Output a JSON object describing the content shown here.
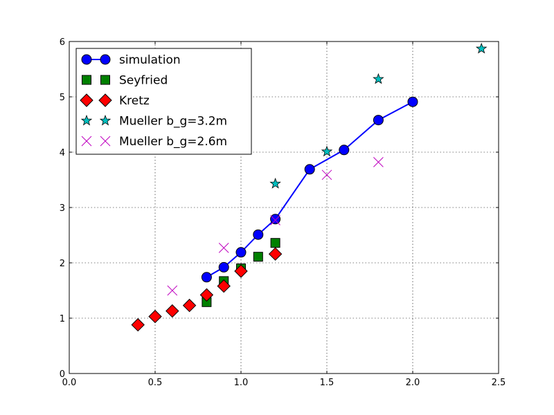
{
  "chart_data": {
    "type": "scatter",
    "title": "",
    "xlabel": "",
    "ylabel": "",
    "xlim": [
      0.0,
      2.5
    ],
    "ylim": [
      0,
      6
    ],
    "x_ticks": [
      "0.0",
      "0.5",
      "1.0",
      "1.5",
      "2.0",
      "2.5"
    ],
    "y_ticks": [
      "0",
      "1",
      "2",
      "3",
      "4",
      "5",
      "6"
    ],
    "grid": true,
    "legend_position": "top-left",
    "series": [
      {
        "name": "simulation",
        "marker": "circle",
        "line": true,
        "color": "#0000ff",
        "x": [
          0.8,
          0.9,
          1.0,
          1.1,
          1.2,
          1.4,
          1.6,
          1.8,
          2.0
        ],
        "y": [
          1.74,
          1.92,
          2.19,
          2.51,
          2.79,
          3.69,
          4.04,
          4.58,
          4.91
        ]
      },
      {
        "name": "Seyfried",
        "marker": "square",
        "line": false,
        "color": "#008000",
        "x": [
          0.8,
          0.9,
          1.0,
          1.1,
          1.2
        ],
        "y": [
          1.29,
          1.67,
          1.9,
          2.11,
          2.36
        ]
      },
      {
        "name": "Kretz",
        "marker": "diamond",
        "line": false,
        "color": "#ff0000",
        "x": [
          0.4,
          0.5,
          0.6,
          0.7,
          0.8,
          0.9,
          1.0,
          1.2
        ],
        "y": [
          0.88,
          1.03,
          1.13,
          1.23,
          1.42,
          1.58,
          1.85,
          2.16
        ]
      },
      {
        "name": "Mueller b_g=3.2m",
        "marker": "star",
        "line": false,
        "color": "#00bfbf",
        "x": [
          1.2,
          1.5,
          1.8,
          2.4
        ],
        "y": [
          3.43,
          4.01,
          5.32,
          5.87
        ]
      },
      {
        "name": "Mueller b_g=2.6m",
        "marker": "x",
        "line": false,
        "color": "#bf00bf",
        "x": [
          0.6,
          0.9,
          1.2,
          1.5,
          1.8
        ],
        "y": [
          1.5,
          2.27,
          2.77,
          3.59,
          3.82
        ]
      }
    ]
  }
}
